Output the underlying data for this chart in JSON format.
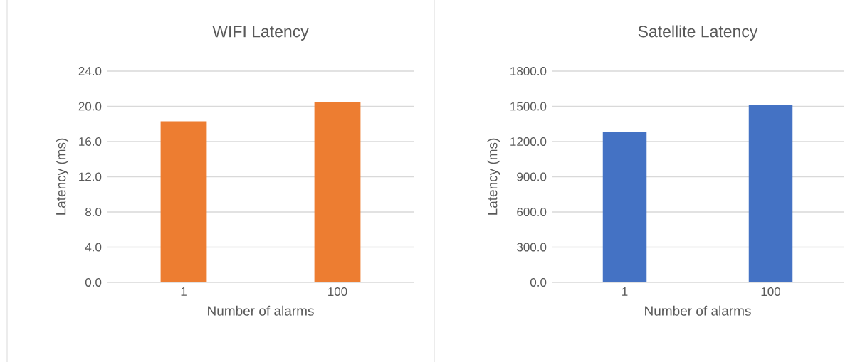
{
  "chart_data": [
    {
      "type": "bar",
      "title": "WIFI Latency",
      "xlabel": "Number of alarms",
      "ylabel": "Latency (ms)",
      "categories": [
        "1",
        "100"
      ],
      "values": [
        18.3,
        20.5
      ],
      "color": "#ed7d31",
      "ylim": [
        0,
        24
      ],
      "yticks": [
        {
          "value": 0,
          "label": "0.0"
        },
        {
          "value": 4,
          "label": "4.0"
        },
        {
          "value": 8,
          "label": "8.0"
        },
        {
          "value": 12,
          "label": "12.0"
        },
        {
          "value": 16,
          "label": "16.0"
        },
        {
          "value": 20,
          "label": "20.0"
        },
        {
          "value": 24,
          "label": "24.0"
        }
      ],
      "grid": "y"
    },
    {
      "type": "bar",
      "title": "Satellite Latency",
      "xlabel": "Number of alarms",
      "ylabel": "Latency (ms)",
      "categories": [
        "1",
        "100"
      ],
      "values": [
        1280,
        1510
      ],
      "color": "#4472c4",
      "ylim": [
        0,
        1800
      ],
      "yticks": [
        {
          "value": 0,
          "label": "0.0"
        },
        {
          "value": 300,
          "label": "300.0"
        },
        {
          "value": 600,
          "label": "600.0"
        },
        {
          "value": 900,
          "label": "900.0"
        },
        {
          "value": 1200,
          "label": "1200.0"
        },
        {
          "value": 1500,
          "label": "1500.0"
        },
        {
          "value": 1800,
          "label": "1800.0"
        }
      ],
      "grid": "y"
    }
  ]
}
